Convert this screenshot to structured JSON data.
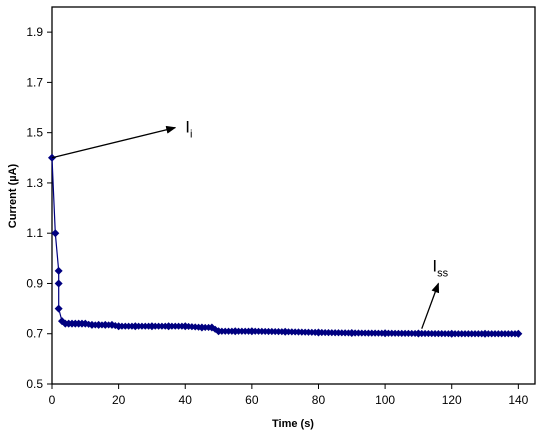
{
  "chart_data": {
    "type": "scatter",
    "title": "",
    "xlabel": "Time (s)",
    "ylabel": "Current (µA)",
    "xlim": [
      0,
      145
    ],
    "ylim": [
      0.5,
      2.0
    ],
    "x_ticks": [
      0,
      20,
      40,
      60,
      80,
      100,
      120,
      140
    ],
    "y_ticks": [
      0.5,
      0.7,
      0.9,
      1.1,
      1.3,
      1.5,
      1.7,
      1.9
    ],
    "grid": false,
    "legend": "none",
    "series_color": "#000080",
    "series": [
      {
        "x": [
          0,
          1,
          2,
          2,
          2,
          3,
          4,
          5,
          6,
          7,
          8,
          9,
          10,
          12,
          14,
          16,
          18,
          20,
          25,
          30,
          35,
          40,
          45,
          48,
          50,
          55,
          60,
          70,
          80,
          90,
          100,
          110,
          120,
          130,
          140
        ],
        "y": [
          1.4,
          1.1,
          0.95,
          0.9,
          0.8,
          0.75,
          0.74,
          0.74,
          0.74,
          0.74,
          0.74,
          0.74,
          0.74,
          0.735,
          0.735,
          0.735,
          0.735,
          0.73,
          0.73,
          0.73,
          0.73,
          0.73,
          0.725,
          0.725,
          0.71,
          0.71,
          0.71,
          0.708,
          0.705,
          0.703,
          0.702,
          0.701,
          0.7,
          0.7,
          0.7
        ]
      }
    ],
    "annotations": [
      {
        "text": "I",
        "subscript": "i",
        "point": [
          0,
          1.4
        ],
        "arrow_to": [
          37,
          1.52
        ]
      },
      {
        "text": "I",
        "subscript": "ss",
        "point": [
          111,
          0.72
        ],
        "arrow_to": [
          116,
          0.9
        ]
      }
    ]
  }
}
